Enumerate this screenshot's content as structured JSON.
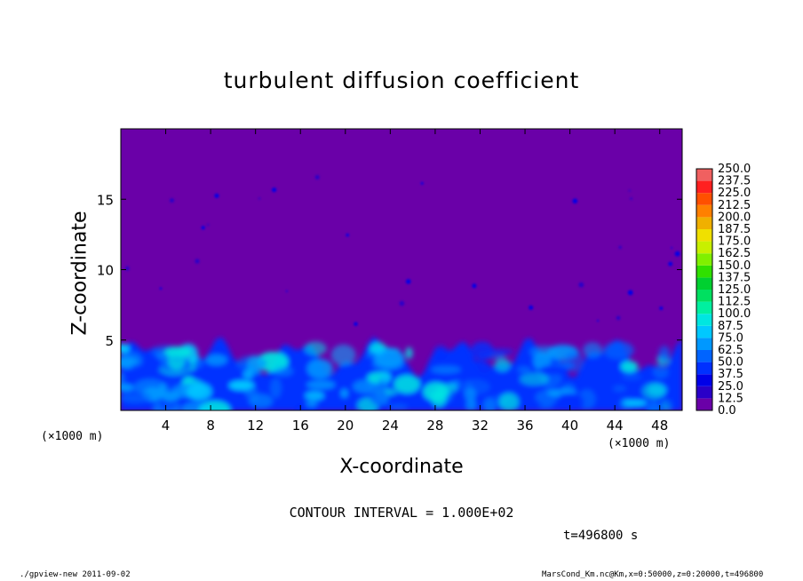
{
  "chart_data": {
    "type": "heatmap",
    "title": "turbulent diffusion coefficient",
    "xlabel": "X-coordinate",
    "ylabel": "Z-coordinate",
    "x_unit_label": "(×1000 m)",
    "xlim": [
      0,
      50
    ],
    "ylim": [
      0,
      20
    ],
    "x_ticks": [
      4,
      8,
      12,
      16,
      20,
      24,
      28,
      32,
      36,
      40,
      44,
      48
    ],
    "y_ticks": [
      5,
      10,
      15
    ],
    "colorbar": {
      "levels": [
        0.0,
        12.5,
        25.0,
        37.5,
        50.0,
        62.5,
        75.0,
        87.5,
        100.0,
        112.5,
        125.0,
        137.5,
        150.0,
        162.5,
        175.0,
        187.5,
        200.0,
        212.5,
        225.0,
        237.5,
        250.0
      ],
      "level_labels": [
        "0.0",
        "12.5",
        "25.0",
        "37.5",
        "50.0",
        "62.5",
        "75.0",
        "87.5",
        "100.0",
        "112.5",
        "125.0",
        "137.5",
        "150.0",
        "162.5",
        "175.0",
        "187.5",
        "200.0",
        "212.5",
        "225.0",
        "237.5",
        "250.0"
      ],
      "colors": [
        "#6a00a8",
        "#2a00c8",
        "#0000e8",
        "#0030ff",
        "#0064ff",
        "#0098ff",
        "#00c8ff",
        "#00e6e0",
        "#00f0a0",
        "#00e060",
        "#00d030",
        "#30e000",
        "#80f000",
        "#c8f000",
        "#f0e000",
        "#f0b000",
        "#ff8000",
        "#ff5000",
        "#ff2020",
        "#f06060"
      ]
    },
    "background_color": "#6a00a8",
    "turbulent_layer_top": 5,
    "contour_interval": "1.000E+02"
  },
  "contour_text": "CONTOUR INTERVAL = 1.000E+02",
  "time_text": "t=496800 s",
  "footer_left": "./gpview-new  2011-09-02",
  "footer_right": "MarsCond_Km.nc@Km,x=0:50000,z=0:20000,t=496800"
}
